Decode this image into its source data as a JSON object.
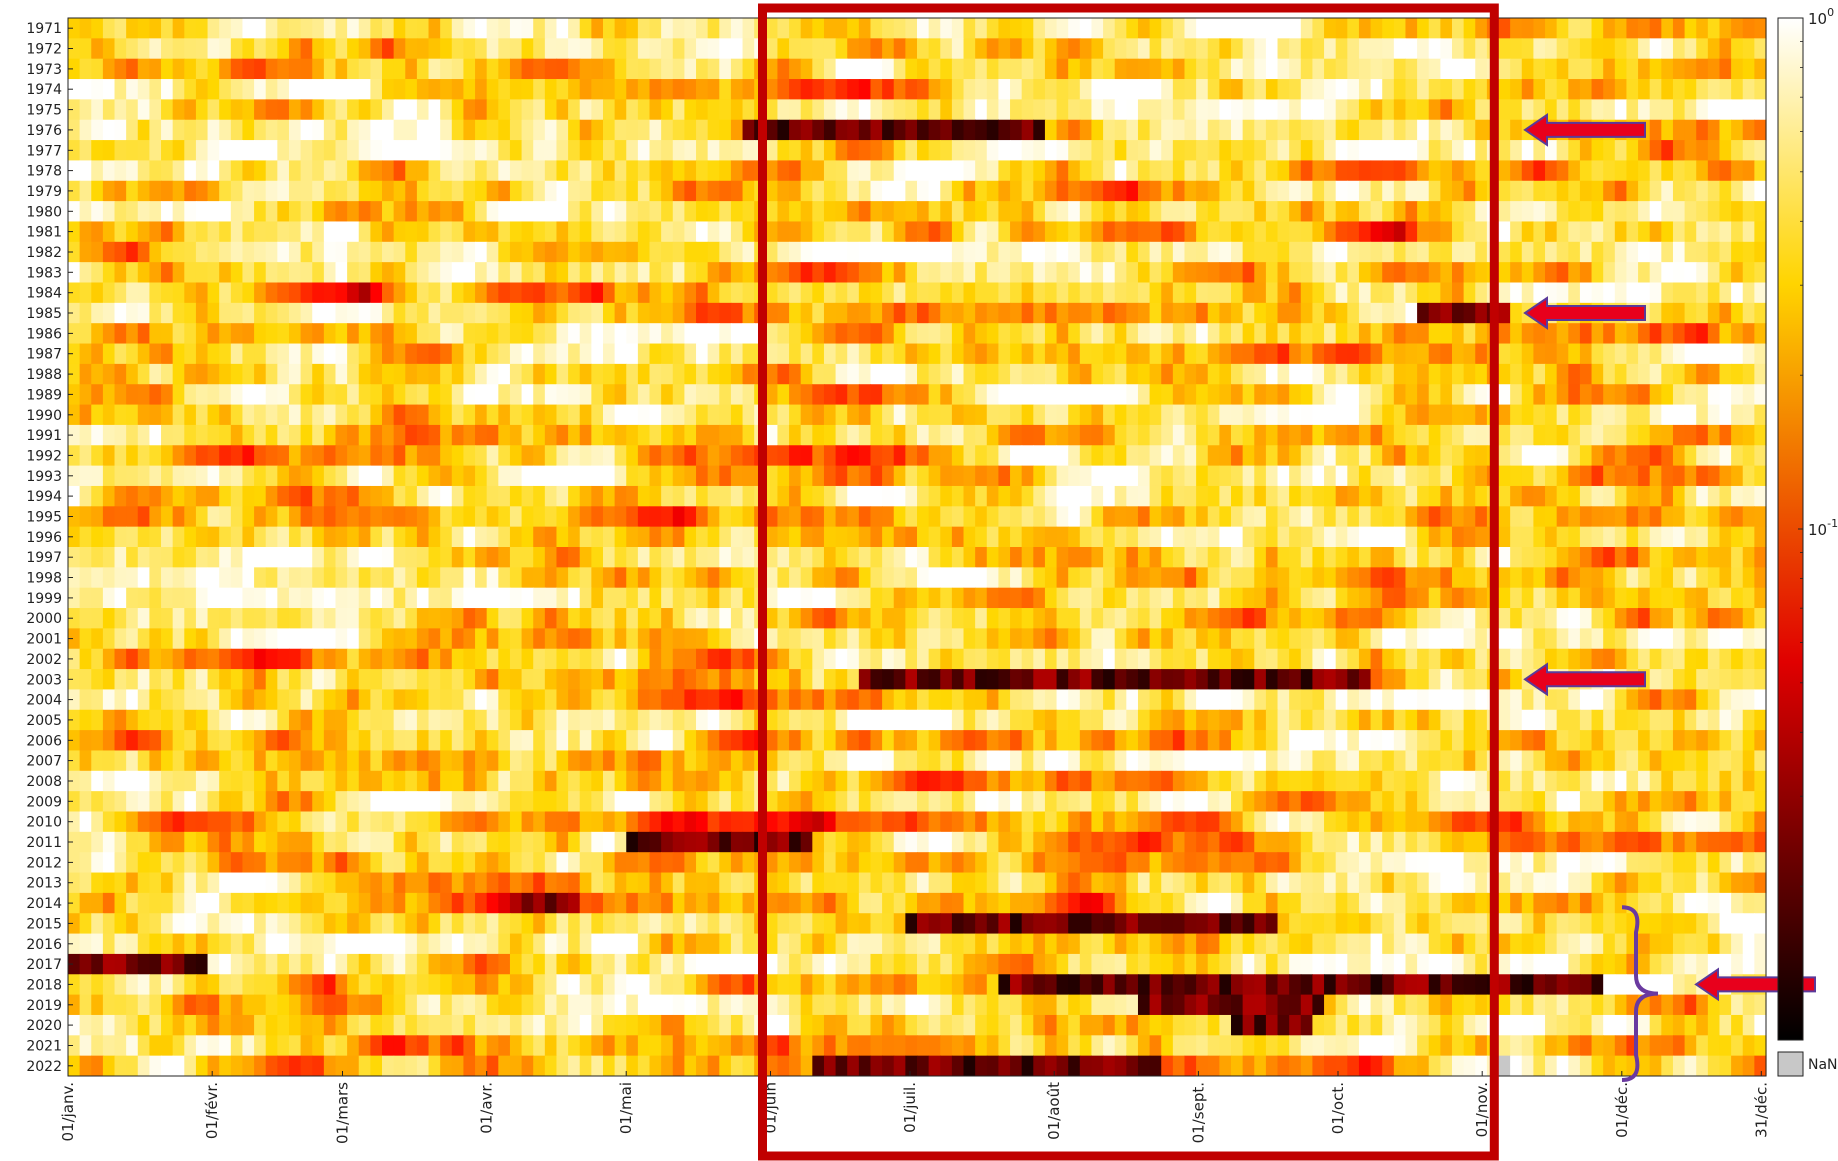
{
  "chart_data": {
    "type": "heatmap",
    "title": "",
    "xlabel": "",
    "ylabel": "",
    "y_categories": [
      "1971",
      "1972",
      "1973",
      "1974",
      "1975",
      "1976",
      "1977",
      "1978",
      "1979",
      "1980",
      "1981",
      "1982",
      "1983",
      "1984",
      "1985",
      "1986",
      "1987",
      "1988",
      "1989",
      "1990",
      "1991",
      "1992",
      "1993",
      "1994",
      "1995",
      "1996",
      "1997",
      "1998",
      "1999",
      "2000",
      "2001",
      "2002",
      "2003",
      "2004",
      "2005",
      "2006",
      "2007",
      "2008",
      "2009",
      "2010",
      "2011",
      "2012",
      "2013",
      "2014",
      "2015",
      "2016",
      "2017",
      "2018",
      "2019",
      "2020",
      "2021",
      "2022"
    ],
    "x_tick_labels": [
      "01/janv.",
      "01/févr.",
      "01/mars",
      "01/avr.",
      "01/mai",
      "01/juin",
      "01/juil.",
      "01/août",
      "01/sept.",
      "01/oct.",
      "01/nov.",
      "01/déc.",
      "31/déc."
    ],
    "x_tick_days": [
      1,
      32,
      60,
      91,
      121,
      152,
      182,
      213,
      244,
      274,
      305,
      335,
      365
    ],
    "x_range_days": [
      1,
      365
    ],
    "colorbar": {
      "scale": "log",
      "range": [
        0.01,
        1
      ],
      "tick_labels": [
        {
          "base": "10",
          "exp": "0",
          "value": 1
        },
        {
          "base": "10",
          "exp": "-1",
          "value": 0.1
        }
      ],
      "colormap": "hot",
      "nan_label": "NaN",
      "nan_color": "#c8c8c8"
    },
    "very_low_periods": [
      {
        "year": "1976",
        "from_day": 145,
        "to_day": 210
      },
      {
        "year": "1985",
        "from_day": 290,
        "to_day": 310
      },
      {
        "year": "2003",
        "from_day": 170,
        "to_day": 280
      },
      {
        "year": "2011",
        "from_day": 120,
        "to_day": 160
      },
      {
        "year": "2014",
        "from_day": 95,
        "to_day": 110
      },
      {
        "year": "2015",
        "from_day": 180,
        "to_day": 260
      },
      {
        "year": "2017",
        "from_day": 1,
        "to_day": 30
      },
      {
        "year": "2018",
        "from_day": 200,
        "to_day": 330
      },
      {
        "year": "2019",
        "from_day": 230,
        "to_day": 270
      },
      {
        "year": "2020",
        "from_day": 250,
        "to_day": 268
      },
      {
        "year": "2022",
        "from_day": 160,
        "to_day": 235
      }
    ],
    "nan_cells": [
      {
        "year": "2022",
        "from_day": 309,
        "to_day": 311
      }
    ],
    "grid": false,
    "legend": "right"
  },
  "annotations": {
    "highlight_box": {
      "from_day": 152,
      "to_day": 305,
      "color": "#c00000"
    },
    "arrows": [
      {
        "year": "1976",
        "color": "#e8001c",
        "outline": "#5a3a9a"
      },
      {
        "year": "1985",
        "color": "#e8001c",
        "outline": "#5a3a9a"
      },
      {
        "year": "2003",
        "color": "#e8001c",
        "outline": "#5a3a9a"
      },
      {
        "year": "2018",
        "color": "#e8001c",
        "outline": "#5a3a9a"
      }
    ],
    "brace": {
      "from_year": "2015",
      "to_year": "2022",
      "color": "#6a3aa0"
    }
  }
}
